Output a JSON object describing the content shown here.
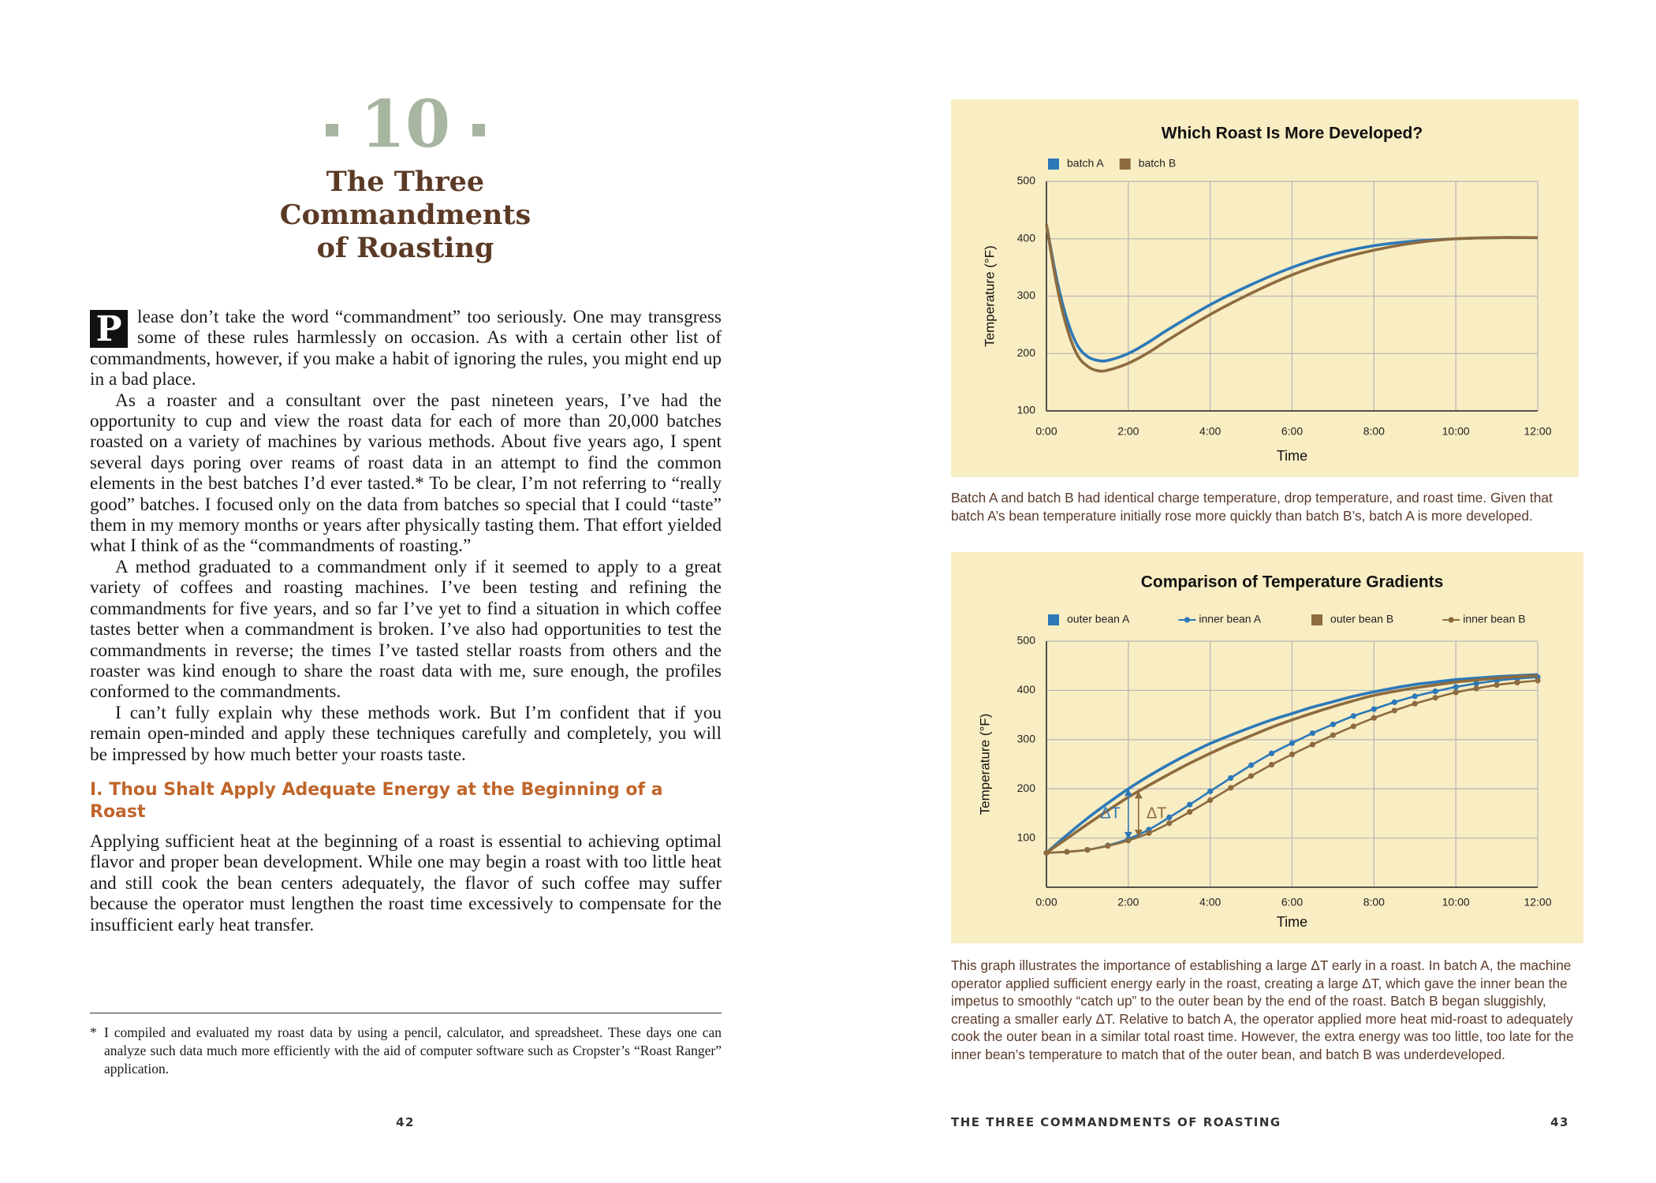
{
  "left_page": {
    "chapter_number": "10",
    "chapter_title_lines": [
      "The Three",
      "Commandments",
      "of Roasting"
    ],
    "drop_cap": "P",
    "paragraphs": [
      "lease don’t take the word “commandment” too seriously. One may transgress some of these rules harmlessly on occasion. As with a certain other list of commandments, however, if you make a habit of ignoring the rules, you might end up in a bad place.",
      "As a roaster and a consultant over the past nineteen years, I’ve had the opportunity to cup and view the roast data for each of more than 20,000 batches roasted on a variety of machines by various methods. About five years ago, I spent several days poring over reams of roast data in an attempt to find the common elements in the best batches I’d ever tasted.* To be clear, I’m not referring to “really good” batches. I focused only on the data from batches so special that I could “taste” them in my memory months or years after physically tasting them. That effort yielded what I think of as the “commandments of roasting.”",
      "A method graduated to a commandment only if it seemed to apply to a great variety of coffees and roasting machines. I’ve been testing and refining the commandments for five years, and so far I’ve yet to find a situation in which coffee tastes better when a commandment is broken. I’ve also had opportunities to test the commandments in reverse; the times I’ve tasted stellar roasts from others and the roaster was kind enough to share the roast data with me, sure enough, the profiles conformed to the commandments.",
      "I can’t fully explain why these methods work. But I’m confident that if you remain open-minded and apply these techniques carefully and completely, you will be impressed by how much better your roasts taste."
    ],
    "section_heading": "I. Thou Shalt Apply Adequate Energy at the Beginning of a Roast",
    "section_paragraph": "Applying sufficient heat at the beginning of a roast is essential to achieving optimal flavor and proper bean development. While one may begin a roast with too little heat and still cook the bean centers adequately, the flavor of such coffee may suffer because the operator must lengthen the roast time excessively to compensate for the insufficient early heat transfer.",
    "footnote_mark": "*",
    "footnote": "I compiled and evaluated my roast data by using a pencil, calculator, and spreadsheet. These days one can analyze such data much more efficiently with the aid of computer software such as Cropster’s “Roast Ranger” application.",
    "page_number": "42"
  },
  "right_page": {
    "running_head": "THE THREE COMMANDMENTS OF ROASTING",
    "page_number": "43"
  },
  "chart_data": [
    {
      "type": "line",
      "title": "Which Roast Is More Developed?",
      "xlabel": "Time",
      "ylabel": "Temperature (°F)",
      "x": [
        0,
        0.25,
        0.5,
        0.75,
        1,
        1.25,
        1.5,
        2,
        2.5,
        3,
        4,
        5,
        6,
        7,
        8,
        9,
        10,
        11,
        12
      ],
      "series": [
        {
          "name": "batch A",
          "color": "#2c79b8",
          "values": [
            425,
            330,
            260,
            215,
            195,
            188,
            188,
            200,
            220,
            243,
            285,
            320,
            350,
            373,
            388,
            396,
            400,
            402,
            402
          ]
        },
        {
          "name": "batch B",
          "color": "#8d6b3f",
          "values": [
            425,
            320,
            245,
            198,
            178,
            170,
            171,
            183,
            202,
            225,
            268,
            305,
            337,
            362,
            380,
            393,
            400,
            402,
            402
          ]
        }
      ],
      "xlim": [
        0,
        12
      ],
      "xticks": [
        {
          "value": 0,
          "label": "0:00"
        },
        {
          "value": 2,
          "label": "2:00"
        },
        {
          "value": 4,
          "label": "4:00"
        },
        {
          "value": 6,
          "label": "6:00"
        },
        {
          "value": 8,
          "label": "8:00"
        },
        {
          "value": 10,
          "label": "10:00"
        },
        {
          "value": 12,
          "label": "12:00"
        }
      ],
      "ylim": [
        100,
        500
      ],
      "yticks": [
        100,
        200,
        300,
        400,
        500
      ],
      "grid": true,
      "legend": "top-left",
      "caption": "Batch A and batch B had identical charge temperature, drop temperature, and roast time. Given that batch A’s bean temperature initially rose more quickly than batch B’s, batch A is more developed."
    },
    {
      "type": "line",
      "title": "Comparison of Temperature Gradients",
      "xlabel": "Time",
      "ylabel": "Temperature (°F)",
      "x": [
        0,
        0.5,
        1,
        1.5,
        2,
        2.5,
        3,
        3.5,
        4,
        4.5,
        5,
        5.5,
        6,
        6.5,
        7,
        7.5,
        8,
        8.5,
        9,
        9.5,
        10,
        10.5,
        11,
        11.5,
        12
      ],
      "series": [
        {
          "name": "outer bean A",
          "color": "#2c79b8",
          "markers": false,
          "values": [
            70,
            106,
            140,
            171,
            200,
            226,
            250,
            272,
            292,
            309,
            325,
            340,
            353,
            366,
            377,
            388,
            397,
            405,
            412,
            417,
            422,
            425,
            428,
            430,
            432
          ]
        },
        {
          "name": "inner bean A",
          "color": "#2c79b8",
          "markers": true,
          "values": [
            70,
            72,
            76,
            85,
            98,
            117,
            142,
            168,
            195,
            222,
            248,
            272,
            293,
            313,
            331,
            348,
            362,
            376,
            388,
            398,
            407,
            414,
            420,
            424,
            427
          ]
        },
        {
          "name": "outer bean B",
          "color": "#8d6b3f",
          "markers": false,
          "values": [
            70,
            99,
            128,
            156,
            183,
            207,
            230,
            252,
            272,
            291,
            308,
            325,
            340,
            354,
            367,
            379,
            390,
            398,
            405,
            411,
            417,
            421,
            425,
            428,
            430
          ]
        },
        {
          "name": "inner bean B",
          "color": "#8d6b3f",
          "markers": true,
          "values": [
            70,
            72,
            76,
            84,
            95,
            110,
            130,
            153,
            177,
            202,
            226,
            249,
            270,
            290,
            309,
            327,
            344,
            359,
            373,
            385,
            396,
            404,
            411,
            416,
            420
          ]
        }
      ],
      "annotations": [
        {
          "text": "ΔT",
          "x": 2,
          "color": "#2c79b8"
        },
        {
          "text": "ΔT",
          "x": 2.25,
          "color": "#8d6b3f"
        }
      ],
      "xlim": [
        0,
        12
      ],
      "xticks": [
        {
          "value": 0,
          "label": "0:00"
        },
        {
          "value": 2,
          "label": "2:00"
        },
        {
          "value": 4,
          "label": "4:00"
        },
        {
          "value": 6,
          "label": "6:00"
        },
        {
          "value": 8,
          "label": "8:00"
        },
        {
          "value": 10,
          "label": "10:00"
        },
        {
          "value": 12,
          "label": "12:00"
        }
      ],
      "ylim": [
        0,
        500
      ],
      "yticks": [
        100,
        200,
        300,
        400,
        500
      ],
      "grid": true,
      "legend": "top-left",
      "caption": "This graph illustrates the importance of establishing a large ΔT early in a roast. In batch A, the machine operator applied sufficient energy early in the roast, creating a large ΔT, which gave the inner bean the impetus to smoothly “catch up” to the outer bean by the end of the roast. Batch B began sluggishly, creating a smaller early ΔT. Relative to batch A, the operator applied more heat mid-roast to adequately cook the outer bean in a similar total roast time. However, the extra energy was too little, too late for the inner bean’s temperature to match that of the outer bean, and batch B was underdeveloped."
    }
  ]
}
